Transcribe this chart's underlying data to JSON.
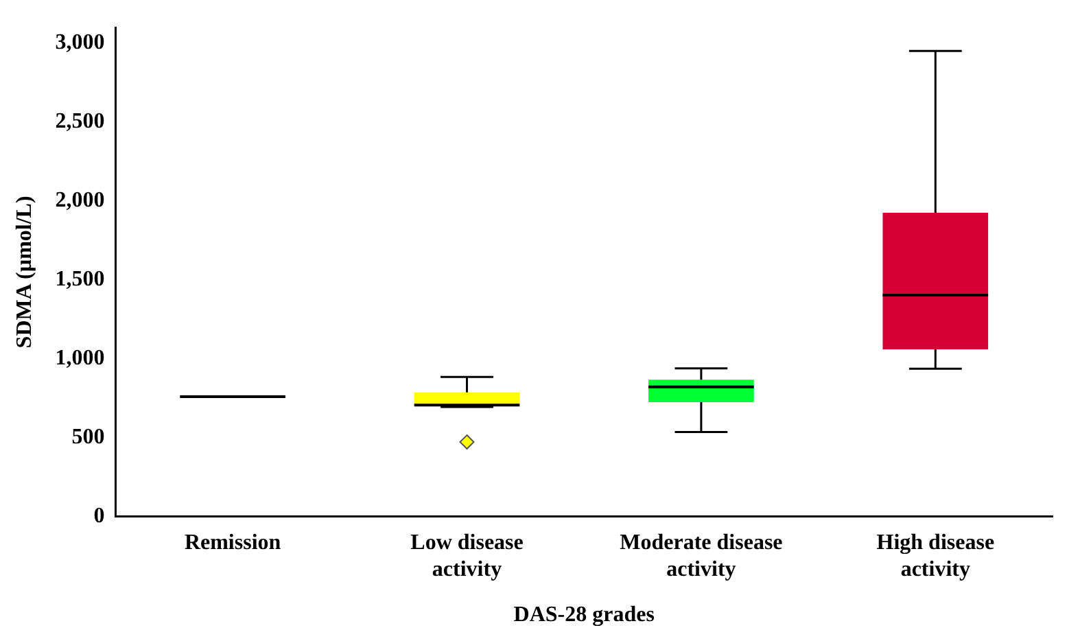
{
  "chart_data": {
    "type": "box",
    "xlabel": "DAS-28 grades",
    "ylabel": "SDMA (µmol/L)",
    "categories": [
      "Remission",
      "Low disease activity",
      "Moderate disease activity",
      "High disease activity"
    ],
    "colors": [
      "#000000",
      "#ffff00",
      "#00ff33",
      "#d70034"
    ],
    "boxes": [
      {
        "low": 760,
        "q1": 760,
        "median": 760,
        "q3": 760,
        "high": 760
      },
      {
        "low": 695,
        "q1": 707,
        "median": 707,
        "q3": 787,
        "high": 885,
        "outliers": [
          473
        ]
      },
      {
        "low": 536,
        "q1": 725,
        "median": 822,
        "q3": 868,
        "high": 940
      },
      {
        "low": 937,
        "q1": 1060,
        "median": 1404,
        "q3": 1926,
        "high": 2951
      }
    ],
    "ylim": [
      0,
      3100
    ],
    "yticks": [
      0,
      500,
      {
        "value": 1000,
        "label": "1,000"
      },
      {
        "value": 1500,
        "label": "1,500"
      },
      {
        "value": 2000,
        "label": "2,000"
      },
      {
        "value": 2500,
        "label": "2,500"
      },
      {
        "value": 3000,
        "label": "3,000"
      }
    ],
    "grid": false,
    "legend": false,
    "marker": "diamond"
  }
}
